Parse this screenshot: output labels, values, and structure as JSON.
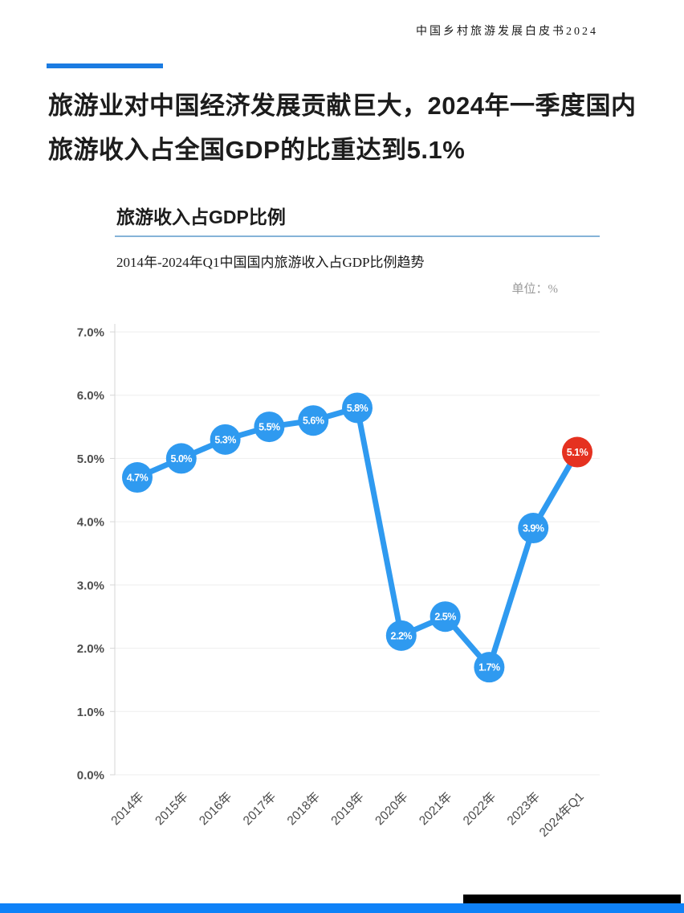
{
  "page": {
    "header": "中国乡村旅游发展白皮书2024",
    "title": "旅游业对中国经济发展贡献巨大，2024年一季度国内旅游收入占全国GDP的比重达到5.1%"
  },
  "section": {
    "chart_title": "旅游收入占GDP比例",
    "chart_subtitle": "2014年-2024年Q1中国国内旅游收入占GDP比例趋势",
    "unit_label": "单位：%"
  },
  "chart_data": {
    "type": "line",
    "title": "旅游收入占GDP比例",
    "subtitle": "2014年-2024年Q1中国国内旅游收入占GDP比例趋势",
    "unit": "%",
    "categories": [
      "2014年",
      "2015年",
      "2016年",
      "2017年",
      "2018年",
      "2019年",
      "2020年",
      "2021年",
      "2022年",
      "2023年",
      "2024年Q1"
    ],
    "values": [
      4.7,
      5.0,
      5.3,
      5.5,
      5.6,
      5.8,
      2.2,
      2.5,
      1.7,
      3.9,
      5.1
    ],
    "point_labels": [
      "4.7%",
      "5.0%",
      "5.3%",
      "5.5%",
      "5.6%",
      "5.8%",
      "2.2%",
      "2.5%",
      "1.7%",
      "3.9%",
      "5.1%"
    ],
    "yticks": [
      "0.0%",
      "1.0%",
      "2.0%",
      "3.0%",
      "4.0%",
      "5.0%",
      "6.0%",
      "7.0%"
    ],
    "ylim": [
      0,
      7
    ],
    "ytick_step": 1,
    "grid": true,
    "legend": "none",
    "line_color": "#2f9af0",
    "point_color": "#2f9af0",
    "highlight_point_color": "#e53120",
    "highlight_index": 10
  },
  "colors": {
    "accent_bar": "#1b7ce2",
    "title_divider": "#85b3d8",
    "footer_blue": "#0f82f8",
    "footer_black": "#000000",
    "gridline": "#eeeeee",
    "axis_text": "#4d4d4d"
  }
}
